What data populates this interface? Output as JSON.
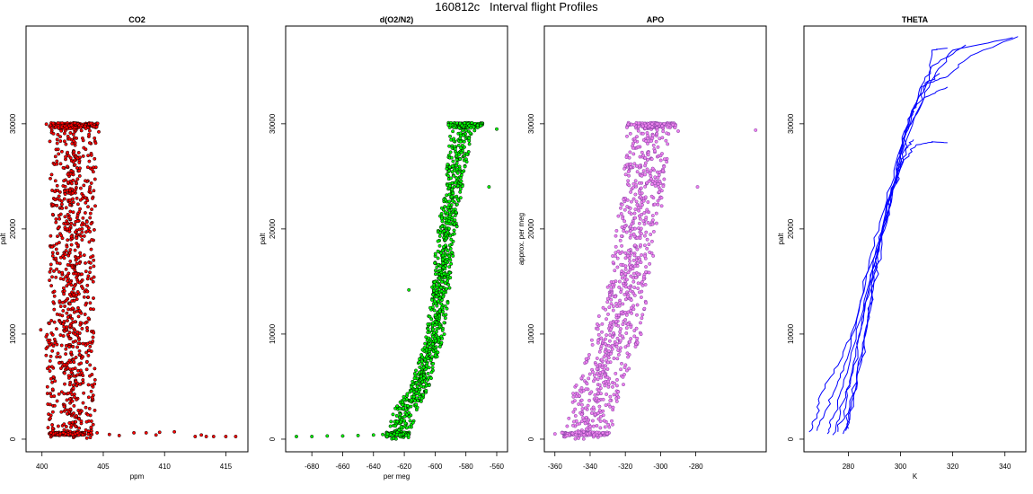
{
  "title": "160812c   Interval flight Profiles",
  "chart_data": [
    {
      "type": "scatter",
      "title": "CO2",
      "xlabel": "ppm",
      "ylabel": "palt",
      "xlim": [
        398.7,
        416.8
      ],
      "ylim": [
        -1200,
        39300
      ],
      "xticks": [
        400,
        405,
        410,
        415
      ],
      "yticks": [
        0,
        10000,
        20000,
        30000
      ],
      "color": "#ff0000",
      "edge_color": "#000000",
      "profile": [
        [
          0,
          402.3,
          0.9
        ],
        [
          3000,
          402.4,
          1.0
        ],
        [
          10000,
          402.3,
          1.0
        ],
        [
          20000,
          402.5,
          0.9
        ],
        [
          30000,
          402.6,
          1.0
        ]
      ],
      "outliers": [
        [
          404.5,
          600
        ],
        [
          405.5,
          450
        ],
        [
          406.3,
          350
        ],
        [
          407.5,
          600
        ],
        [
          408.5,
          600
        ],
        [
          409.3,
          400
        ],
        [
          409.6,
          650
        ],
        [
          410.8,
          700
        ],
        [
          412.5,
          250
        ],
        [
          413.0,
          400
        ],
        [
          413.4,
          250
        ],
        [
          414.0,
          250
        ],
        [
          415.0,
          250
        ],
        [
          415.8,
          250
        ],
        [
          400.6,
          11000
        ],
        [
          399.9,
          10400
        ]
      ]
    },
    {
      "type": "scatter",
      "title": "d(O2/N2)",
      "xlabel": "per meg",
      "ylabel": "palt",
      "xlim": [
        -697,
        -553
      ],
      "ylim": [
        -1200,
        39300
      ],
      "xticks": [
        -680,
        -660,
        -640,
        -620,
        -600,
        -580,
        -560
      ],
      "yticks": [
        0,
        10000,
        20000,
        30000
      ],
      "color": "#00ff00",
      "edge_color": "#000000",
      "profile": [
        [
          0,
          -625,
          4
        ],
        [
          3000,
          -618,
          4
        ],
        [
          5000,
          -610,
          3
        ],
        [
          10000,
          -600,
          3
        ],
        [
          15000,
          -596,
          3
        ],
        [
          20000,
          -592,
          3
        ],
        [
          25000,
          -587,
          3
        ],
        [
          29500,
          -582,
          4
        ],
        [
          30000,
          -580,
          6
        ]
      ],
      "outliers": [
        [
          -690,
          250
        ],
        [
          -680,
          250
        ],
        [
          -670,
          300
        ],
        [
          -660,
          300
        ],
        [
          -650,
          350
        ],
        [
          -640,
          400
        ],
        [
          -634,
          450
        ],
        [
          -617,
          14200
        ],
        [
          -560,
          29500
        ],
        [
          -565,
          24000
        ]
      ]
    },
    {
      "type": "scatter",
      "title": "APO",
      "xlabel": "",
      "ylabel": "approx. per meg",
      "xlim": [
        -366,
        -240
      ],
      "ylim": [
        -1200,
        39300
      ],
      "xticks": [
        -360,
        -340,
        -320,
        -300,
        -280
      ],
      "yticks": [
        0,
        10000,
        20000,
        30000
      ],
      "color": "#ee82ee",
      "edge_color": "#8040a0",
      "profile": [
        [
          0,
          -343,
          7
        ],
        [
          5000,
          -335,
          7
        ],
        [
          10000,
          -325,
          7
        ],
        [
          15000,
          -318,
          6
        ],
        [
          20000,
          -313,
          6
        ],
        [
          25000,
          -309,
          6
        ],
        [
          30000,
          -305,
          7
        ]
      ],
      "outliers": [
        [
          -356,
          600
        ],
        [
          -360,
          500
        ],
        [
          -350,
          550
        ],
        [
          -246,
          29400
        ],
        [
          -279,
          24000
        ],
        [
          -290,
          29300
        ]
      ]
    },
    {
      "type": "line",
      "title": "THETA",
      "xlabel": "K",
      "ylabel": "palt",
      "xlim": [
        263,
        348
      ],
      "ylim": [
        -1200,
        39300
      ],
      "xticks": [
        280,
        300,
        320,
        340
      ],
      "yticks": [
        0,
        10000,
        20000,
        30000
      ],
      "color": "#0000ff",
      "series": [
        {
          "points": [
            [
              265,
              700
            ],
            [
              268,
              2000
            ],
            [
              270,
              4500
            ],
            [
              276,
              7000
            ],
            [
              281,
              10000
            ],
            [
              288,
              17000
            ],
            [
              294,
              22000
            ],
            [
              299,
              27000
            ],
            [
              304,
              31000
            ],
            [
              310,
              33800
            ],
            [
              318,
              34500
            ],
            [
              327,
              36500
            ],
            [
              345,
              38300
            ]
          ]
        },
        {
          "points": [
            [
              268,
              800
            ],
            [
              272,
              3000
            ],
            [
              276,
              5500
            ],
            [
              280,
              8000
            ],
            [
              286,
              14000
            ],
            [
              293,
              20000
            ],
            [
              299,
              25000
            ],
            [
              303,
              30000
            ],
            [
              307,
              33000
            ],
            [
              312,
              35500
            ],
            [
              325,
              37500
            ]
          ]
        },
        {
          "points": [
            [
              272,
              500
            ],
            [
              274,
              2000
            ],
            [
              278,
              5000
            ],
            [
              283,
              9500
            ],
            [
              289,
              16000
            ],
            [
              295,
              21500
            ],
            [
              300,
              27000
            ],
            [
              306,
              31000
            ],
            [
              313,
              34500
            ],
            [
              320,
              37000
            ],
            [
              343,
              38200
            ]
          ]
        },
        {
          "points": [
            [
              274,
              400
            ],
            [
              277,
              2500
            ],
            [
              281,
              6000
            ],
            [
              285,
              10500
            ],
            [
              290,
              16500
            ],
            [
              296,
              23000
            ],
            [
              302,
              29000
            ],
            [
              309,
              32500
            ],
            [
              318,
              33500
            ]
          ]
        },
        {
          "points": [
            [
              276,
              700
            ],
            [
              279,
              3000
            ],
            [
              282,
              7000
            ],
            [
              286,
              12000
            ],
            [
              291,
              18000
            ],
            [
              297,
              24000
            ],
            [
              303,
              29500
            ],
            [
              308,
              33500
            ],
            [
              315,
              34800
            ]
          ]
        },
        {
          "points": [
            [
              278,
              500
            ],
            [
              280,
              2500
            ],
            [
              284,
              6500
            ],
            [
              288,
              12500
            ],
            [
              292,
              18500
            ],
            [
              297,
              23500
            ],
            [
              301,
              26500
            ],
            [
              306,
              28000
            ],
            [
              312,
              28300
            ],
            [
              318,
              28200
            ]
          ]
        },
        {
          "points": [
            [
              280,
              1000
            ],
            [
              282,
              4000
            ],
            [
              286,
              9000
            ],
            [
              290,
              15000
            ],
            [
              294,
              20000
            ],
            [
              298,
              24500
            ],
            [
              302,
              27500
            ],
            [
              305,
              28500
            ]
          ]
        },
        {
          "points": [
            [
              279,
              800
            ],
            [
              282,
              3500
            ],
            [
              285,
              8000
            ],
            [
              289,
              14000
            ],
            [
              293,
              19500
            ],
            [
              297,
              24000
            ],
            [
              300,
              27000
            ],
            [
              303,
              30500
            ],
            [
              307,
              32000
            ],
            [
              311,
              34500
            ],
            [
              312,
              37000
            ],
            [
              318,
              37200
            ]
          ]
        }
      ]
    }
  ]
}
